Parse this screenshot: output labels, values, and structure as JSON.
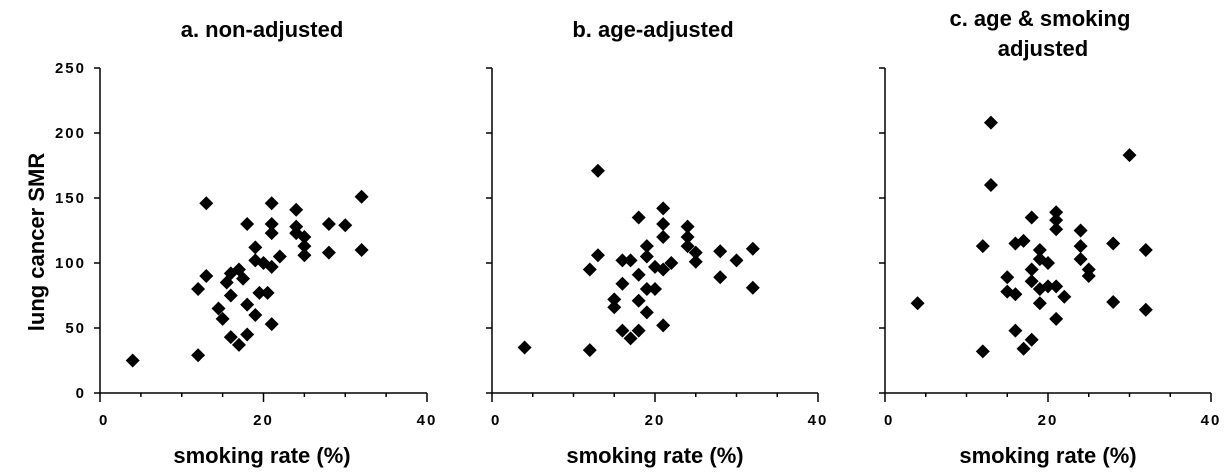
{
  "figure": {
    "panel_titles": [
      "a. non-adjusted",
      "b. age-adjusted",
      "c. age & smoking adjusted"
    ],
    "ylabel": "lung cancer SMR",
    "xlabel": "smoking rate (%)"
  },
  "chart_data": [
    {
      "type": "scatter",
      "title": "a. non-adjusted",
      "xlabel": "smoking rate (%)",
      "ylabel": "lung cancer SMR",
      "xlim": [
        0,
        40
      ],
      "ylim": [
        0,
        250
      ],
      "xticks": [
        0,
        20,
        40
      ],
      "yticks": [
        0,
        50,
        100,
        150,
        200,
        250
      ],
      "grid": false,
      "marker": "diamond",
      "points": [
        {
          "x": 4,
          "y": 25
        },
        {
          "x": 12,
          "y": 29
        },
        {
          "x": 12,
          "y": 80
        },
        {
          "x": 13,
          "y": 146
        },
        {
          "x": 13,
          "y": 90
        },
        {
          "x": 14.5,
          "y": 65
        },
        {
          "x": 15,
          "y": 57
        },
        {
          "x": 15.5,
          "y": 85
        },
        {
          "x": 16,
          "y": 92
        },
        {
          "x": 16,
          "y": 75
        },
        {
          "x": 16,
          "y": 43
        },
        {
          "x": 17,
          "y": 95
        },
        {
          "x": 17,
          "y": 37
        },
        {
          "x": 17.5,
          "y": 88
        },
        {
          "x": 18,
          "y": 130
        },
        {
          "x": 18,
          "y": 68
        },
        {
          "x": 18,
          "y": 45
        },
        {
          "x": 19,
          "y": 112
        },
        {
          "x": 19,
          "y": 102
        },
        {
          "x": 19,
          "y": 60
        },
        {
          "x": 19.5,
          "y": 77
        },
        {
          "x": 20,
          "y": 100
        },
        {
          "x": 20.5,
          "y": 77
        },
        {
          "x": 21,
          "y": 146
        },
        {
          "x": 21,
          "y": 130
        },
        {
          "x": 21,
          "y": 123
        },
        {
          "x": 21,
          "y": 97
        },
        {
          "x": 21,
          "y": 53
        },
        {
          "x": 22,
          "y": 105
        },
        {
          "x": 24,
          "y": 141
        },
        {
          "x": 24,
          "y": 128
        },
        {
          "x": 24,
          "y": 123
        },
        {
          "x": 25,
          "y": 120
        },
        {
          "x": 25,
          "y": 113
        },
        {
          "x": 25,
          "y": 106
        },
        {
          "x": 28,
          "y": 130
        },
        {
          "x": 28,
          "y": 108
        },
        {
          "x": 30,
          "y": 129
        },
        {
          "x": 32,
          "y": 151
        },
        {
          "x": 32,
          "y": 110
        }
      ]
    },
    {
      "type": "scatter",
      "title": "b. age-adjusted",
      "xlabel": "smoking rate (%)",
      "ylabel": "",
      "xlim": [
        0,
        40
      ],
      "ylim": [
        0,
        250
      ],
      "xticks": [
        0,
        20,
        40
      ],
      "yticks": [
        0,
        50,
        100,
        150,
        200,
        250
      ],
      "grid": false,
      "marker": "diamond",
      "points": [
        {
          "x": 4,
          "y": 35
        },
        {
          "x": 12,
          "y": 33
        },
        {
          "x": 12,
          "y": 95
        },
        {
          "x": 13,
          "y": 171
        },
        {
          "x": 13,
          "y": 106
        },
        {
          "x": 15,
          "y": 72
        },
        {
          "x": 15,
          "y": 66
        },
        {
          "x": 16,
          "y": 102
        },
        {
          "x": 16,
          "y": 84
        },
        {
          "x": 16,
          "y": 48
        },
        {
          "x": 17,
          "y": 102
        },
        {
          "x": 17,
          "y": 42
        },
        {
          "x": 18,
          "y": 135
        },
        {
          "x": 18,
          "y": 91
        },
        {
          "x": 18,
          "y": 71
        },
        {
          "x": 18,
          "y": 48
        },
        {
          "x": 19,
          "y": 113
        },
        {
          "x": 19,
          "y": 105
        },
        {
          "x": 19,
          "y": 80
        },
        {
          "x": 19,
          "y": 62
        },
        {
          "x": 20,
          "y": 97
        },
        {
          "x": 20,
          "y": 80
        },
        {
          "x": 21,
          "y": 142
        },
        {
          "x": 21,
          "y": 130
        },
        {
          "x": 21,
          "y": 120
        },
        {
          "x": 21,
          "y": 95
        },
        {
          "x": 21,
          "y": 52
        },
        {
          "x": 22,
          "y": 100
        },
        {
          "x": 24,
          "y": 128
        },
        {
          "x": 24,
          "y": 120
        },
        {
          "x": 24,
          "y": 113
        },
        {
          "x": 25,
          "y": 108
        },
        {
          "x": 25,
          "y": 101
        },
        {
          "x": 28,
          "y": 109
        },
        {
          "x": 28,
          "y": 89
        },
        {
          "x": 30,
          "y": 102
        },
        {
          "x": 32,
          "y": 111
        },
        {
          "x": 32,
          "y": 81
        }
      ]
    },
    {
      "type": "scatter",
      "title": "c. age & smoking adjusted",
      "xlabel": "smoking rate (%)",
      "ylabel": "",
      "xlim": [
        0,
        40
      ],
      "ylim": [
        0,
        250
      ],
      "xticks": [
        0,
        20,
        40
      ],
      "yticks": [
        0,
        50,
        100,
        150,
        200,
        250
      ],
      "grid": false,
      "marker": "diamond",
      "points": [
        {
          "x": 4,
          "y": 69
        },
        {
          "x": 12,
          "y": 113
        },
        {
          "x": 12,
          "y": 32
        },
        {
          "x": 13,
          "y": 208
        },
        {
          "x": 13,
          "y": 160
        },
        {
          "x": 15,
          "y": 89
        },
        {
          "x": 15,
          "y": 78
        },
        {
          "x": 16,
          "y": 115
        },
        {
          "x": 16,
          "y": 76
        },
        {
          "x": 16,
          "y": 48
        },
        {
          "x": 17,
          "y": 117
        },
        {
          "x": 17,
          "y": 34
        },
        {
          "x": 18,
          "y": 135
        },
        {
          "x": 18,
          "y": 95
        },
        {
          "x": 18,
          "y": 86
        },
        {
          "x": 18,
          "y": 41
        },
        {
          "x": 19,
          "y": 110
        },
        {
          "x": 19,
          "y": 103
        },
        {
          "x": 19,
          "y": 80
        },
        {
          "x": 19,
          "y": 69
        },
        {
          "x": 20,
          "y": 100
        },
        {
          "x": 20,
          "y": 82
        },
        {
          "x": 21,
          "y": 139
        },
        {
          "x": 21,
          "y": 133
        },
        {
          "x": 21,
          "y": 126
        },
        {
          "x": 21,
          "y": 82
        },
        {
          "x": 21,
          "y": 57
        },
        {
          "x": 22,
          "y": 74
        },
        {
          "x": 24,
          "y": 125
        },
        {
          "x": 24,
          "y": 113
        },
        {
          "x": 24,
          "y": 103
        },
        {
          "x": 25,
          "y": 95
        },
        {
          "x": 25,
          "y": 90
        },
        {
          "x": 28,
          "y": 115
        },
        {
          "x": 28,
          "y": 70
        },
        {
          "x": 30,
          "y": 183
        },
        {
          "x": 32,
          "y": 110
        },
        {
          "x": 32,
          "y": 64
        }
      ]
    }
  ]
}
